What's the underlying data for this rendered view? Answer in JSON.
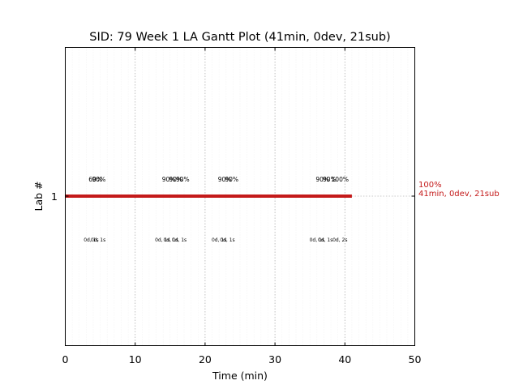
{
  "chart_data": {
    "type": "gantt",
    "title": "SID: 79 Week 1 LA Gantt Plot (41min, 0dev, 21sub)",
    "xlabel": "Time (min)",
    "ylabel": "Lab #",
    "xlim": [
      0,
      50
    ],
    "x_ticks": [
      0,
      10,
      20,
      30,
      40,
      50
    ],
    "x_tick_labels": [
      "0",
      "10",
      "20",
      "30",
      "40",
      "50"
    ],
    "y_ticks": [
      1
    ],
    "y_tick_labels": [
      "1"
    ],
    "grid": {
      "major_x": true,
      "minor_x": true,
      "minor_step": 1
    },
    "bars": [
      {
        "lab": 1,
        "start": 0,
        "end": 41,
        "color": "#c41a1a"
      }
    ],
    "end_annotation": {
      "lab": 1,
      "lines": [
        "100%",
        "41min, 0dev, 21sub"
      ],
      "color": "#c41a1a"
    },
    "percent_labels": [
      {
        "x": 4.3,
        "text": "60%"
      },
      {
        "x": 4.8,
        "text": "90%"
      },
      {
        "x": 14.8,
        "text": "90%"
      },
      {
        "x": 15.8,
        "text": "90%"
      },
      {
        "x": 16.8,
        "text": "90%"
      },
      {
        "x": 22.8,
        "text": "90%"
      },
      {
        "x": 23.8,
        "text": "90%"
      },
      {
        "x": 36.8,
        "text": "90%"
      },
      {
        "x": 37.8,
        "text": "90%"
      },
      {
        "x": 39.3,
        "text": "100%"
      }
    ],
    "duration_labels": [
      {
        "x": 3.7,
        "text": "0d, 1s"
      },
      {
        "x": 4.7,
        "text": "0d, 1s"
      },
      {
        "x": 13.9,
        "text": "0d, 1s"
      },
      {
        "x": 15.1,
        "text": "0d, 1s"
      },
      {
        "x": 16.3,
        "text": "0d, 1s"
      },
      {
        "x": 22.0,
        "text": "0d, 1s"
      },
      {
        "x": 23.2,
        "text": "0d, 1s"
      },
      {
        "x": 36.0,
        "text": "0d, 1s"
      },
      {
        "x": 37.2,
        "text": "0d, 1s"
      },
      {
        "x": 39.3,
        "text": "0d, 2s"
      }
    ]
  }
}
